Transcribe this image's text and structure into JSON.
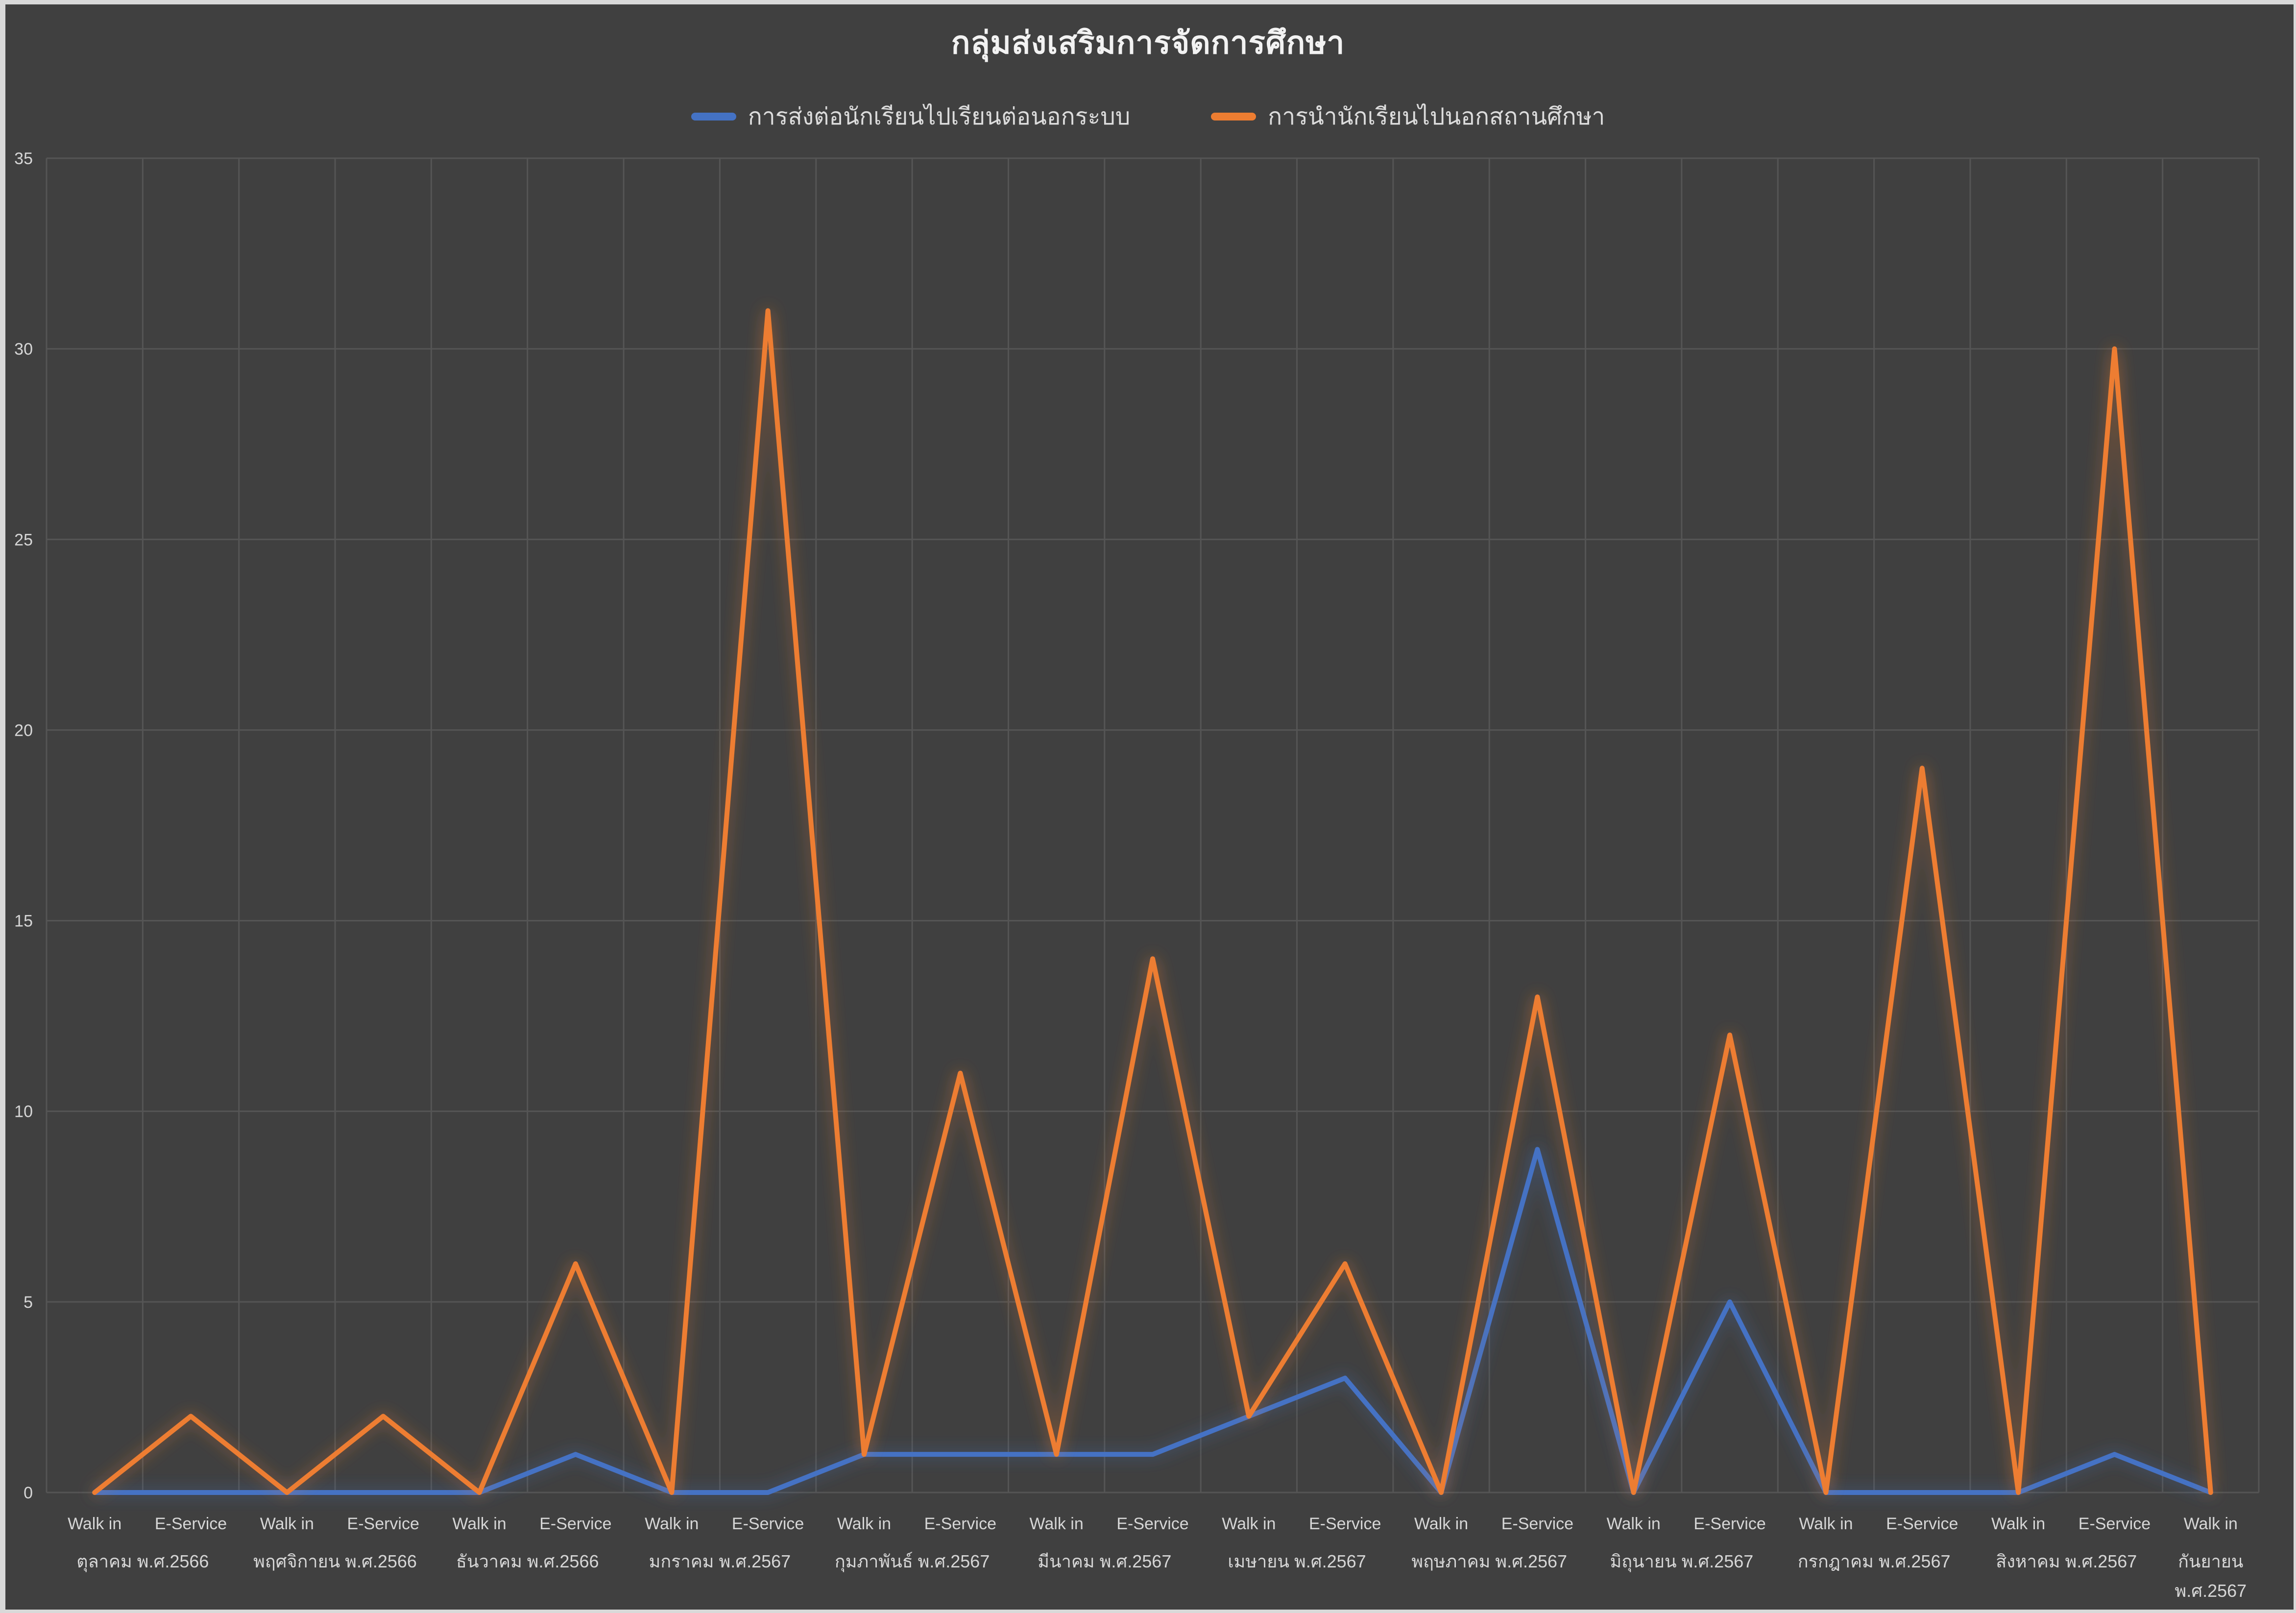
{
  "title": "กลุ่มส่งเสริมการจัดการศึกษา",
  "colors": {
    "background": "#404040",
    "frame": "#D9D9D9",
    "gridline": "#555555",
    "axis_text": "#D6D6D6",
    "title_text": "#F2F2F2",
    "series_blue": "#4472C4",
    "series_orange": "#ED7D31"
  },
  "chart_data": {
    "type": "line",
    "title": "กลุ่มส่งเสริมการจัดการศึกษา",
    "xlabel": "",
    "ylabel": "",
    "ylim": [
      0,
      35
    ],
    "y_ticks": [
      0,
      5,
      10,
      15,
      20,
      25,
      30,
      35
    ],
    "grid": true,
    "legend_position": "top-center",
    "categories": [
      "Walk in",
      "E-Service",
      "Walk in",
      "E-Service",
      "Walk in",
      "E-Service",
      "Walk in",
      "E-Service",
      "Walk in",
      "E-Service",
      "Walk in",
      "E-Service",
      "Walk in",
      "E-Service",
      "Walk in",
      "E-Service",
      "Walk in",
      "E-Service",
      "Walk in",
      "E-Service",
      "Walk in",
      "E-Service",
      "Walk in"
    ],
    "category_groups": [
      {
        "label": "ตุลาคม พ.ศ.2566",
        "span": 2
      },
      {
        "label": "พฤศจิกายน พ.ศ.2566",
        "span": 2
      },
      {
        "label": "ธันวาคม พ.ศ.2566",
        "span": 2
      },
      {
        "label": "มกราคม พ.ศ.2567",
        "span": 2
      },
      {
        "label": "กุมภาพันธ์ พ.ศ.2567",
        "span": 2
      },
      {
        "label": "มีนาคม พ.ศ.2567",
        "span": 2
      },
      {
        "label": "เมษายน พ.ศ.2567",
        "span": 2
      },
      {
        "label": "พฤษภาคม พ.ศ.2567",
        "span": 2
      },
      {
        "label": "มิถุนายน พ.ศ.2567",
        "span": 2
      },
      {
        "label": "กรกฎาคม พ.ศ.2567",
        "span": 2
      },
      {
        "label": "สิงหาคม พ.ศ.2567",
        "span": 2
      },
      {
        "label": "กันยายน พ.ศ.2567",
        "span": 1,
        "wrap": true
      }
    ],
    "series": [
      {
        "name": "การส่งต่อนักเรียนไปเรียนต่อนอกระบบ",
        "color": "#4472C4",
        "values": [
          0,
          0,
          0,
          0,
          0,
          1,
          0,
          0,
          1,
          1,
          1,
          1,
          2,
          3,
          0,
          9,
          0,
          5,
          0,
          0,
          0,
          1,
          0
        ]
      },
      {
        "name": "การนำนักเรียนไปนอกสถานศึกษา",
        "color": "#ED7D31",
        "values": [
          0,
          2,
          0,
          2,
          0,
          6,
          0,
          31,
          1,
          11,
          1,
          14,
          2,
          6,
          0,
          13,
          0,
          12,
          0,
          19,
          0,
          30,
          0
        ]
      }
    ]
  }
}
